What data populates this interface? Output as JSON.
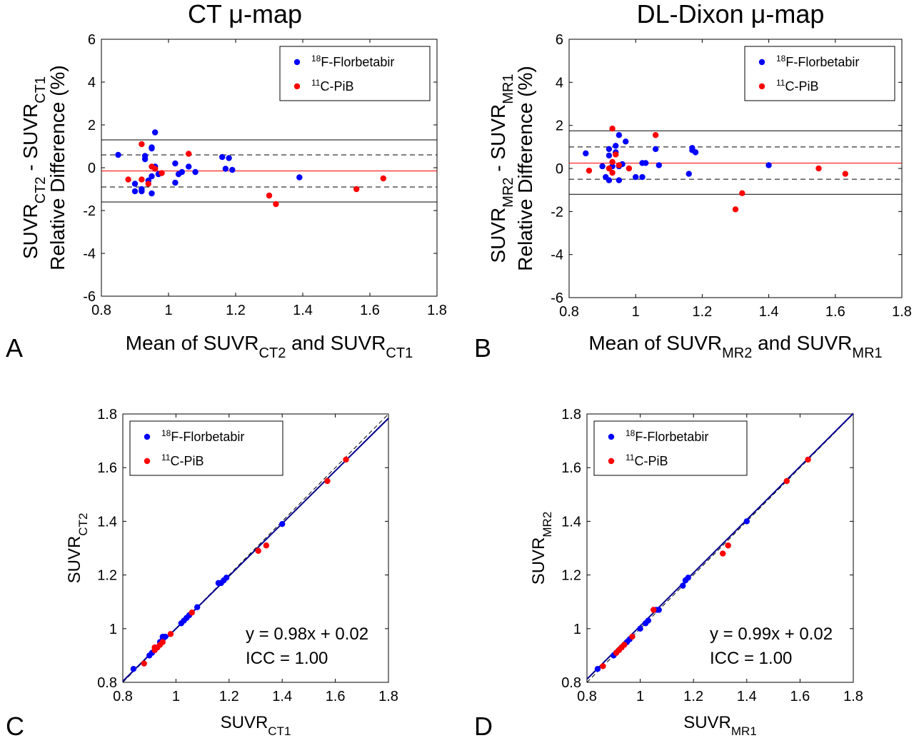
{
  "figure": {
    "titles": [
      "CT μ-map",
      "DL-Dixon μ-map"
    ],
    "panel_letters": [
      "A",
      "B",
      "C",
      "D"
    ]
  },
  "colors": {
    "florbetabir": "#0000ff",
    "pib": "#ff0000",
    "mean_line": "#ff0000",
    "limit_line": "#000000",
    "fit_line": "#00008b",
    "identity_line": "#000000"
  },
  "chart_data": [
    {
      "panel": "A",
      "type": "scatter",
      "title": "CT μ-map",
      "xlabel": {
        "main": "Mean of SUVR",
        "sub1": "CT2",
        "mid": " and SUVR",
        "sub2": "CT1"
      },
      "ylabel": {
        "line1": "Relative Difference (%)",
        "main": "SUVR",
        "sub1": "CT2",
        "mid": " - SUVR",
        "sub2": "CT1"
      },
      "xlim": [
        0.8,
        1.8
      ],
      "ylim": [
        -6,
        6
      ],
      "xticks": [
        "0.8",
        "1",
        "1.2",
        "1.4",
        "1.6",
        "1.8"
      ],
      "yticks": [
        "-6",
        "-4",
        "-2",
        "0",
        "2",
        "4",
        "6"
      ],
      "legend": {
        "placement": "top-right",
        "entries": [
          {
            "sup": "18",
            "text": "F-Florbetabir"
          },
          {
            "sup": "11",
            "text": "C-PiB"
          }
        ]
      },
      "hlines": {
        "mean": -0.15,
        "upper_dashed": 0.6,
        "lower_dashed": -0.9,
        "upper_solid": 1.3,
        "lower_solid": -1.6
      },
      "series": [
        {
          "name": "18F-Florbetabir",
          "points": [
            [
              0.85,
              0.6
            ],
            [
              0.9,
              -0.75
            ],
            [
              0.9,
              -1.1
            ],
            [
              0.92,
              -1.0
            ],
            [
              0.92,
              -1.1
            ],
            [
              0.93,
              0.4
            ],
            [
              0.93,
              0.55
            ],
            [
              0.94,
              -0.6
            ],
            [
              0.95,
              0.95
            ],
            [
              0.95,
              0.9
            ],
            [
              0.95,
              -0.4
            ],
            [
              0.95,
              -1.2
            ],
            [
              0.96,
              0.05
            ],
            [
              0.96,
              1.65
            ],
            [
              0.97,
              -0.3
            ],
            [
              1.02,
              -0.7
            ],
            [
              1.02,
              0.2
            ],
            [
              1.03,
              -0.3
            ],
            [
              1.04,
              -0.2
            ],
            [
              1.06,
              0.05
            ],
            [
              1.08,
              -0.2
            ],
            [
              1.16,
              0.5
            ],
            [
              1.17,
              -0.05
            ],
            [
              1.18,
              0.45
            ],
            [
              1.19,
              -0.1
            ],
            [
              1.39,
              -0.45
            ]
          ]
        },
        {
          "name": "11C-PiB",
          "points": [
            [
              0.88,
              -0.55
            ],
            [
              0.92,
              1.1
            ],
            [
              0.92,
              -0.55
            ],
            [
              0.94,
              -0.75
            ],
            [
              0.95,
              0.05
            ],
            [
              0.96,
              -0.05
            ],
            [
              0.98,
              -0.25
            ],
            [
              1.06,
              0.65
            ],
            [
              1.3,
              -1.3
            ],
            [
              1.32,
              -1.7
            ],
            [
              1.56,
              -1.0
            ],
            [
              1.64,
              -0.5
            ]
          ]
        }
      ]
    },
    {
      "panel": "B",
      "type": "scatter",
      "title": "DL-Dixon μ-map",
      "xlabel": {
        "main": "Mean of SUVR",
        "sub1": "MR2",
        "mid": " and SUVR",
        "sub2": "MR1"
      },
      "ylabel": {
        "line1": "Relative Difference (%)",
        "main": "SUVR",
        "sub1": "MR2",
        "mid": " - SUVR",
        "sub2": "MR1"
      },
      "xlim": [
        0.8,
        1.8
      ],
      "ylim": [
        -6,
        6
      ],
      "xticks": [
        "0.8",
        "1",
        "1.2",
        "1.4",
        "1.6",
        "1.8"
      ],
      "yticks": [
        "-6",
        "-4",
        "-2",
        "0",
        "2",
        "4",
        "6"
      ],
      "legend": {
        "placement": "top-right",
        "entries": [
          {
            "sup": "18",
            "text": "F-Florbetabir"
          },
          {
            "sup": "11",
            "text": "C-PiB"
          }
        ]
      },
      "hlines": {
        "mean": 0.25,
        "upper_dashed": 1.0,
        "lower_dashed": -0.5,
        "upper_solid": 1.75,
        "lower_solid": -1.2
      },
      "series": [
        {
          "name": "18F-Florbetabir",
          "points": [
            [
              0.85,
              0.7
            ],
            [
              0.9,
              0.1
            ],
            [
              0.91,
              -0.4
            ],
            [
              0.92,
              -0.55
            ],
            [
              0.92,
              0.6
            ],
            [
              0.92,
              0.9
            ],
            [
              0.93,
              0.1
            ],
            [
              0.94,
              0.75
            ],
            [
              0.94,
              1.05
            ],
            [
              0.95,
              1.55
            ],
            [
              0.95,
              0.1
            ],
            [
              0.95,
              -0.55
            ],
            [
              0.96,
              0.2
            ],
            [
              0.97,
              1.25
            ],
            [
              1.0,
              -0.4
            ],
            [
              1.02,
              0.25
            ],
            [
              1.02,
              -0.4
            ],
            [
              1.03,
              0.25
            ],
            [
              1.06,
              0.9
            ],
            [
              1.07,
              0.15
            ],
            [
              1.16,
              -0.25
            ],
            [
              1.17,
              0.85
            ],
            [
              1.17,
              0.95
            ],
            [
              1.18,
              0.75
            ],
            [
              1.4,
              0.15
            ]
          ]
        },
        {
          "name": "11C-PiB",
          "points": [
            [
              0.86,
              -0.1
            ],
            [
              0.92,
              0.0
            ],
            [
              0.93,
              1.85
            ],
            [
              0.93,
              -0.2
            ],
            [
              0.93,
              0.3
            ],
            [
              0.94,
              0.65
            ],
            [
              0.95,
              0.15
            ],
            [
              0.98,
              0.0
            ],
            [
              1.06,
              1.55
            ],
            [
              1.3,
              -1.9
            ],
            [
              1.32,
              -1.15
            ],
            [
              1.55,
              0.0
            ],
            [
              1.63,
              -0.25
            ]
          ]
        }
      ]
    },
    {
      "panel": "C",
      "type": "scatter",
      "xlabel": {
        "main": "SUVR",
        "sub1": "CT1"
      },
      "ylabel": {
        "main": "SUVR",
        "sub1": "CT2"
      },
      "xlim": [
        0.8,
        1.8
      ],
      "ylim": [
        0.8,
        1.8
      ],
      "xticks": [
        "0.8",
        "1",
        "1.2",
        "1.4",
        "1.6",
        "1.8"
      ],
      "yticks": [
        "0.8",
        "1",
        "1.2",
        "1.4",
        "1.6",
        "1.8"
      ],
      "legend": {
        "placement": "top-left",
        "entries": [
          {
            "sup": "18",
            "text": "F-Florbetabir"
          },
          {
            "sup": "11",
            "text": "C-PiB"
          }
        ]
      },
      "annotations": [
        "y = 0.98x + 0.02",
        "ICC = 1.00"
      ],
      "fit": {
        "slope": 0.98,
        "intercept": 0.02
      },
      "series": [
        {
          "name": "18F-Florbetabir",
          "points": [
            [
              0.84,
              0.85
            ],
            [
              0.9,
              0.9
            ],
            [
              0.91,
              0.91
            ],
            [
              0.92,
              0.92
            ],
            [
              0.93,
              0.93
            ],
            [
              0.94,
              0.95
            ],
            [
              0.95,
              0.96
            ],
            [
              0.95,
              0.97
            ],
            [
              0.96,
              0.97
            ],
            [
              1.02,
              1.02
            ],
            [
              1.03,
              1.03
            ],
            [
              1.04,
              1.04
            ],
            [
              1.05,
              1.05
            ],
            [
              1.08,
              1.08
            ],
            [
              1.16,
              1.17
            ],
            [
              1.17,
              1.17
            ],
            [
              1.18,
              1.18
            ],
            [
              1.19,
              1.19
            ],
            [
              1.4,
              1.39
            ]
          ]
        },
        {
          "name": "11C-PiB",
          "points": [
            [
              0.88,
              0.87
            ],
            [
              0.92,
              0.92
            ],
            [
              0.92,
              0.93
            ],
            [
              0.93,
              0.93
            ],
            [
              0.94,
              0.94
            ],
            [
              0.95,
              0.95
            ],
            [
              0.98,
              0.98
            ],
            [
              1.06,
              1.06
            ],
            [
              1.31,
              1.29
            ],
            [
              1.34,
              1.31
            ],
            [
              1.57,
              1.55
            ],
            [
              1.64,
              1.63
            ]
          ]
        }
      ]
    },
    {
      "panel": "D",
      "type": "scatter",
      "xlabel": {
        "main": "SUVR",
        "sub1": "MR1"
      },
      "ylabel": {
        "main": "SUVR",
        "sub1": "MR2"
      },
      "xlim": [
        0.8,
        1.8
      ],
      "ylim": [
        0.8,
        1.8
      ],
      "xticks": [
        "0.8",
        "1",
        "1.2",
        "1.4",
        "1.6",
        "1.8"
      ],
      "yticks": [
        "0.8",
        "1",
        "1.2",
        "1.4",
        "1.6",
        "1.8"
      ],
      "legend": {
        "placement": "top-left",
        "entries": [
          {
            "sup": "18",
            "text": "F-Florbetabir"
          },
          {
            "sup": "11",
            "text": "C-PiB"
          }
        ]
      },
      "annotations": [
        "y = 0.99x + 0.02",
        "ICC = 1.00"
      ],
      "fit": {
        "slope": 0.99,
        "intercept": 0.02
      },
      "series": [
        {
          "name": "18F-Florbetabir",
          "points": [
            [
              0.84,
              0.85
            ],
            [
              0.9,
              0.9
            ],
            [
              0.91,
              0.91
            ],
            [
              0.92,
              0.92
            ],
            [
              0.93,
              0.93
            ],
            [
              0.94,
              0.94
            ],
            [
              0.95,
              0.95
            ],
            [
              0.96,
              0.96
            ],
            [
              1.0,
              1.0
            ],
            [
              1.02,
              1.02
            ],
            [
              1.03,
              1.03
            ],
            [
              1.06,
              1.07
            ],
            [
              1.07,
              1.07
            ],
            [
              1.16,
              1.16
            ],
            [
              1.17,
              1.18
            ],
            [
              1.18,
              1.19
            ],
            [
              1.4,
              1.4
            ]
          ]
        },
        {
          "name": "11C-PiB",
          "points": [
            [
              0.86,
              0.86
            ],
            [
              0.91,
              0.91
            ],
            [
              0.92,
              0.92
            ],
            [
              0.93,
              0.93
            ],
            [
              0.94,
              0.94
            ],
            [
              0.97,
              0.97
            ],
            [
              1.05,
              1.07
            ],
            [
              1.31,
              1.28
            ],
            [
              1.33,
              1.31
            ],
            [
              1.55,
              1.55
            ],
            [
              1.63,
              1.63
            ]
          ]
        }
      ]
    }
  ]
}
